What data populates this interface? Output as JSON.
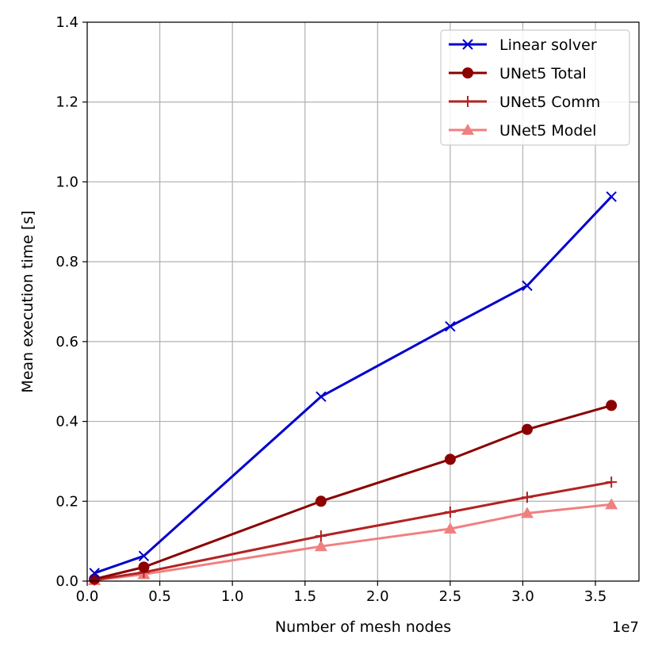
{
  "chart_data": {
    "type": "line",
    "title": "",
    "xlabel": "Number of mesh nodes",
    "ylabel": "Mean execution time [s]",
    "x_offset_label": "1e7",
    "xlim": [
      0,
      3.8
    ],
    "ylim": [
      0,
      1.4
    ],
    "xticks": [
      "0.0",
      "0.5",
      "1.0",
      "1.5",
      "2.0",
      "2.5",
      "3.0",
      "3.5"
    ],
    "yticks": [
      "0.0",
      "0.2",
      "0.4",
      "0.6",
      "0.8",
      "1.0",
      "1.2",
      "1.4"
    ],
    "grid": true,
    "legend_position": "top-right",
    "x": [
      0.05,
      0.39,
      1.61,
      2.5,
      3.03,
      3.61
    ],
    "series": [
      {
        "name": "Linear solver",
        "color": "#0000cc",
        "marker": "x",
        "values": [
          0.02,
          0.063,
          0.462,
          0.638,
          0.74,
          0.963
        ]
      },
      {
        "name": "UNet5 Total",
        "color": "#8b0000",
        "marker": "circle",
        "values": [
          0.005,
          0.035,
          0.2,
          0.305,
          0.38,
          0.44
        ]
      },
      {
        "name": "UNet5 Comm",
        "color": "#b22222",
        "marker": "plus",
        "values": [
          0.003,
          0.022,
          0.113,
          0.173,
          0.21,
          0.248
        ]
      },
      {
        "name": "UNet5 Model",
        "color": "#f08080",
        "marker": "triangle",
        "values": [
          0.002,
          0.017,
          0.087,
          0.131,
          0.17,
          0.192
        ]
      }
    ]
  }
}
